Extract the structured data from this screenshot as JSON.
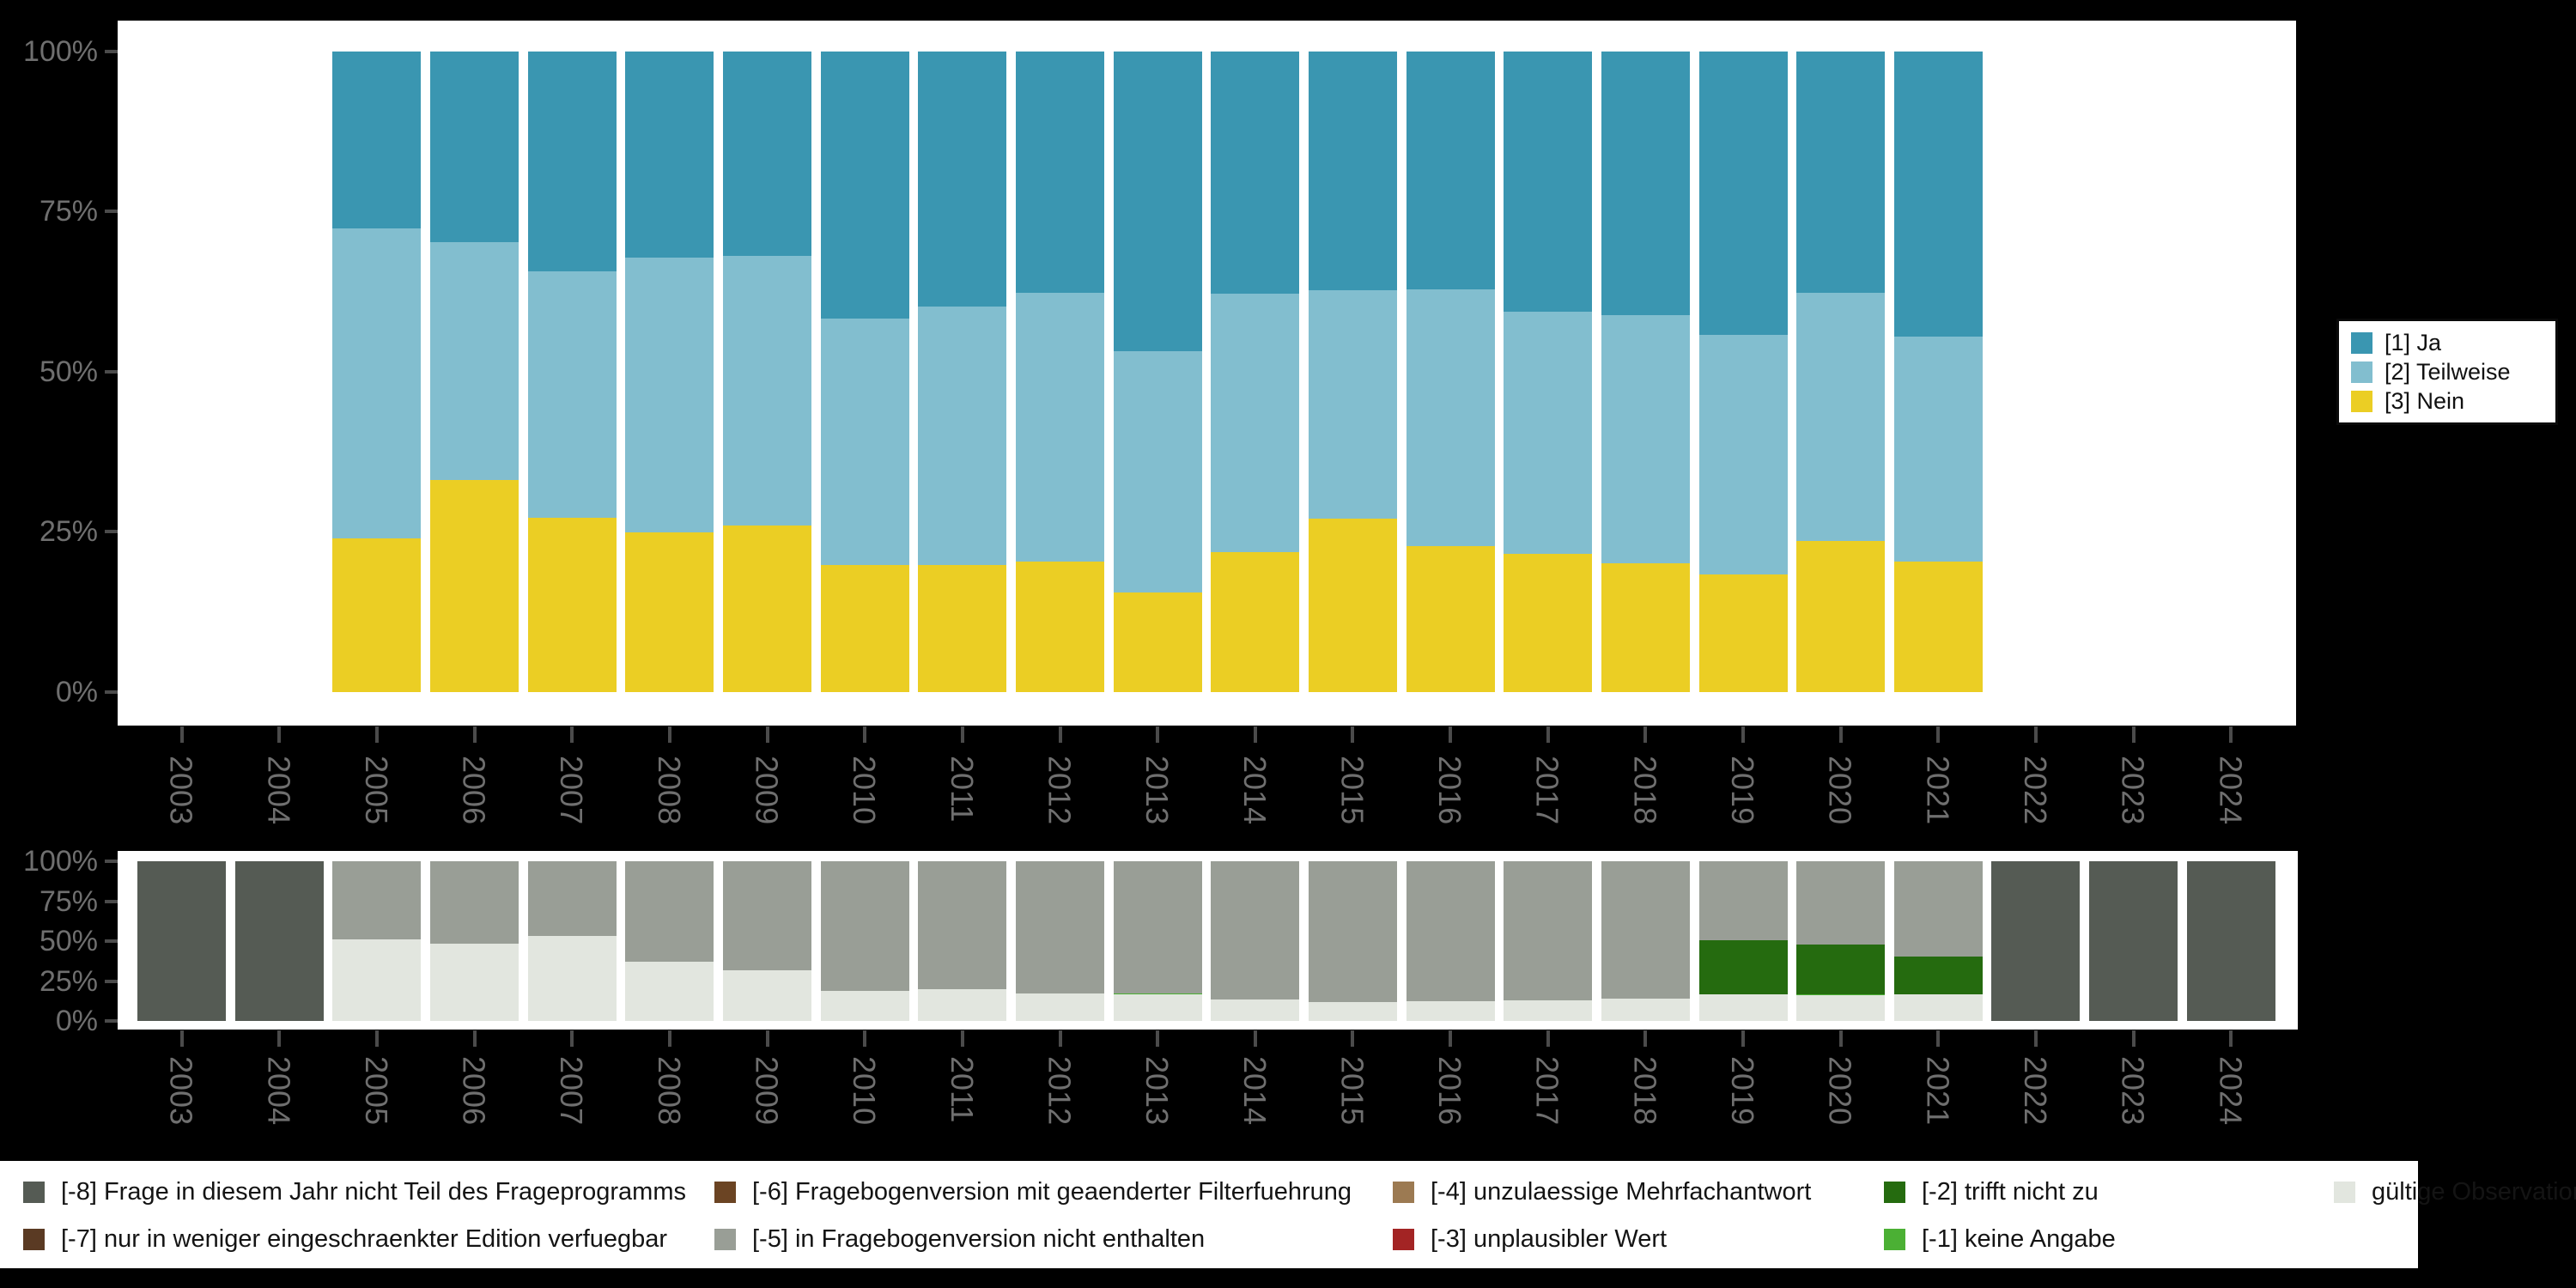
{
  "page": {
    "background": "#000000",
    "panel_background": "#ffffff",
    "axis_label_color": "#6f6f6f",
    "axis_tick_color": "#4b4b4b"
  },
  "years": [
    "2003",
    "2004",
    "2005",
    "2006",
    "2007",
    "2008",
    "2009",
    "2010",
    "2011",
    "2012",
    "2013",
    "2014",
    "2015",
    "2016",
    "2017",
    "2018",
    "2019",
    "2020",
    "2021",
    "2022",
    "2023",
    "2024"
  ],
  "y_axis": {
    "tick_labels": [
      "100%",
      "75%",
      "50%",
      "25%",
      "0%"
    ],
    "tick_values": [
      100,
      75,
      50,
      25,
      0
    ]
  },
  "answers_legend": {
    "items": [
      {
        "label": "[1] Ja",
        "color": "#3a96b1"
      },
      {
        "label": "[2] Teilweise",
        "color": "#82becf"
      },
      {
        "label": "[3] Nein",
        "color": "#ebce24"
      }
    ]
  },
  "missing_legend": {
    "row1": [
      {
        "label": "[-8] Frage in diesem Jahr nicht Teil des Frageprogramms",
        "color": "#555b54"
      },
      {
        "label": "[-6] Fragebogenversion mit geaenderter Filterfuehrung",
        "color": "#6b4423"
      },
      {
        "label": "[-4] unzulaessige Mehrfachantwort",
        "color": "#9c7a52"
      },
      {
        "label": "[-2] trifft nicht zu",
        "color": "#256b0f"
      },
      {
        "label": "gültige Observationen",
        "color": "#e2e6df"
      }
    ],
    "row2": [
      {
        "label": "[-7] nur in weniger eingeschraenkter Edition verfuegbar",
        "color": "#5a3a23"
      },
      {
        "label": "[-5] in Fragebogenversion nicht enthalten",
        "color": "#999e96"
      },
      {
        "label": "[-3] unplausibler Wert",
        "color": "#a32424"
      },
      {
        "label": "[-1] keine Angabe",
        "color": "#4bb034"
      }
    ]
  },
  "chart_data": [
    {
      "type": "bar",
      "stacked": true,
      "percent": true,
      "title": "",
      "xlabel": "",
      "ylabel": "",
      "ylim": [
        0,
        100
      ],
      "grid": false,
      "legend_position": "right",
      "categories": [
        "2003",
        "2004",
        "2005",
        "2006",
        "2007",
        "2008",
        "2009",
        "2010",
        "2011",
        "2012",
        "2013",
        "2014",
        "2015",
        "2016",
        "2017",
        "2018",
        "2019",
        "2020",
        "2021",
        "2022",
        "2023",
        "2024"
      ],
      "series": [
        {
          "name": "[3] Nein",
          "color": "#ebce24",
          "values": [
            null,
            null,
            24.0,
            33.1,
            27.2,
            24.9,
            26.0,
            19.8,
            19.8,
            20.4,
            15.6,
            21.8,
            27.0,
            22.8,
            21.6,
            20.1,
            18.4,
            23.6,
            20.4,
            null,
            null,
            null
          ]
        },
        {
          "name": "[2] Teilweise",
          "color": "#82becf",
          "values": [
            null,
            null,
            48.3,
            37.1,
            38.4,
            42.9,
            42.0,
            38.5,
            40.4,
            41.9,
            37.6,
            40.3,
            35.7,
            40.1,
            37.7,
            38.7,
            37.3,
            38.7,
            35.0,
            null,
            null,
            null
          ]
        },
        {
          "name": "[1] Ja",
          "color": "#3a96b1",
          "values": [
            null,
            null,
            27.7,
            29.8,
            34.4,
            32.2,
            32.0,
            41.7,
            39.8,
            37.7,
            46.8,
            37.9,
            37.3,
            37.1,
            40.7,
            41.2,
            44.3,
            37.7,
            44.6,
            null,
            null,
            null
          ]
        }
      ]
    },
    {
      "type": "bar",
      "stacked": true,
      "percent": true,
      "title": "",
      "xlabel": "",
      "ylabel": "",
      "ylim": [
        0,
        100
      ],
      "grid": false,
      "legend_position": "bottom",
      "categories": [
        "2003",
        "2004",
        "2005",
        "2006",
        "2007",
        "2008",
        "2009",
        "2010",
        "2011",
        "2012",
        "2013",
        "2014",
        "2015",
        "2016",
        "2017",
        "2018",
        "2019",
        "2020",
        "2021",
        "2022",
        "2023",
        "2024"
      ],
      "series": [
        {
          "name": "gültige Observationen",
          "color": "#e2e6df",
          "values": [
            0,
            0,
            51.1,
            48.6,
            53.4,
            36.9,
            31.7,
            19.1,
            20.0,
            17.3,
            16.6,
            13.4,
            11.9,
            12.5,
            13.0,
            14.0,
            16.9,
            16.3,
            16.9,
            0,
            0,
            0
          ]
        },
        {
          "name": "[-1] keine Angabe",
          "color": "#4bb034",
          "values": [
            0,
            0,
            0,
            0,
            0,
            0,
            0,
            0,
            0,
            0,
            0.7,
            0,
            0,
            0,
            0,
            0,
            0,
            0.5,
            0,
            0,
            0,
            0
          ]
        },
        {
          "name": "[-2] trifft nicht zu",
          "color": "#256b0f",
          "values": [
            0,
            0,
            0,
            0,
            0,
            0,
            0,
            0,
            0,
            0,
            0,
            0,
            0,
            0,
            0,
            0,
            33.9,
            31.3,
            23.2,
            0,
            0,
            0
          ]
        },
        {
          "name": "[-5] in Fragebogenversion nicht enthalten",
          "color": "#999e96",
          "values": [
            0,
            0,
            48.9,
            51.4,
            46.6,
            63.1,
            68.3,
            80.9,
            80.0,
            82.7,
            82.7,
            86.6,
            88.1,
            87.5,
            87.0,
            86.0,
            49.2,
            51.9,
            59.9,
            0,
            0,
            0
          ]
        },
        {
          "name": "[-8] Frage in diesem Jahr nicht Teil des Frageprogramms",
          "color": "#555b54",
          "values": [
            100,
            100,
            0,
            0,
            0,
            0,
            0,
            0,
            0,
            0,
            0,
            0,
            0,
            0,
            0,
            0,
            0,
            0,
            0,
            100,
            100,
            100
          ]
        }
      ]
    }
  ]
}
